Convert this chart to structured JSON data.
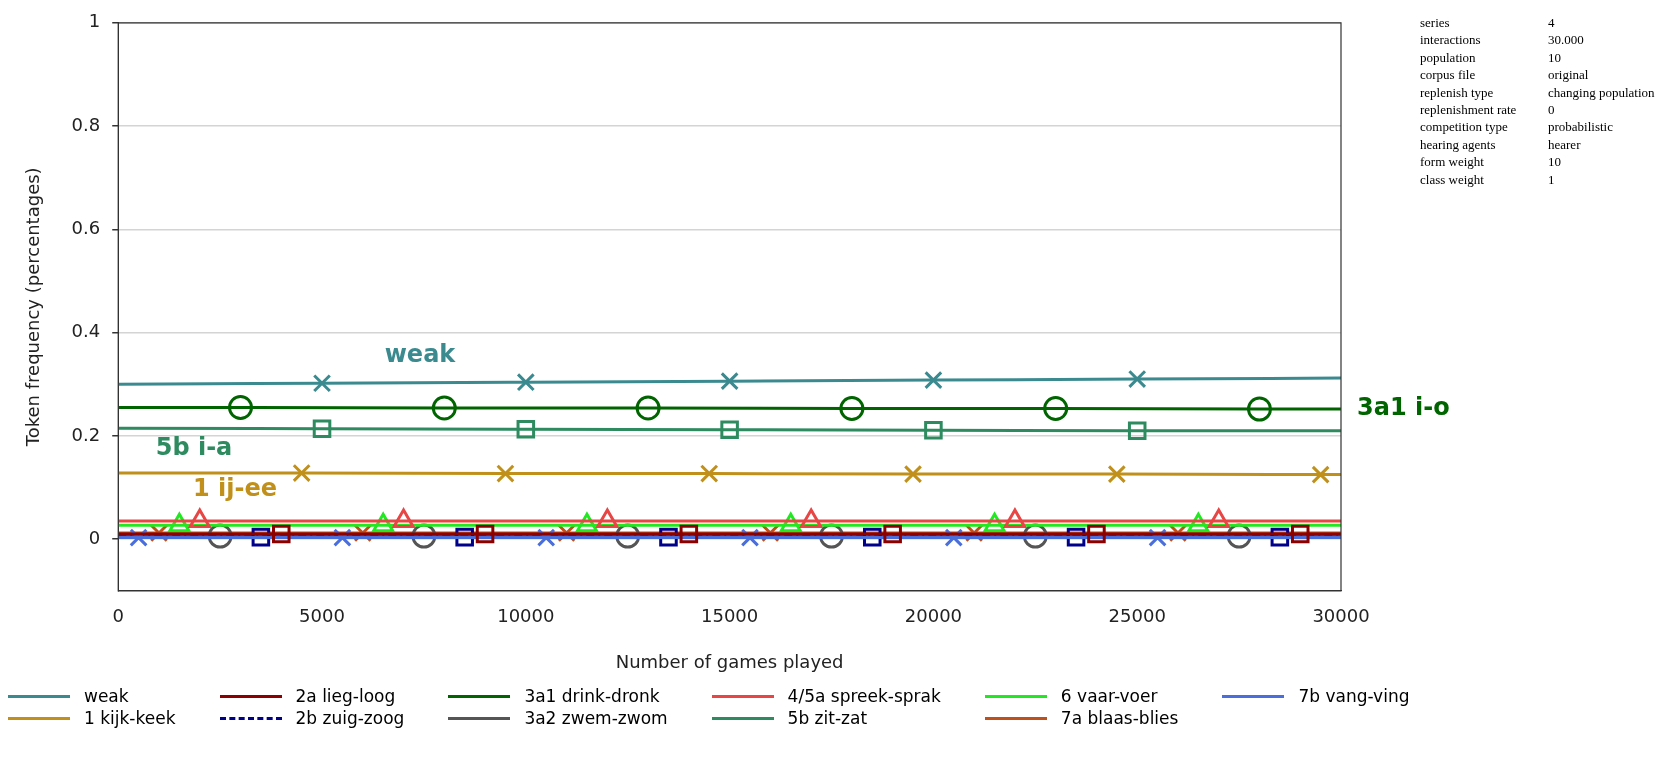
{
  "chart_data": {
    "type": "line",
    "xlabel": "Number of games played",
    "ylabel": "Token frequency (percentages)",
    "xlim": [
      0,
      30000
    ],
    "xticks": [
      0,
      5000,
      10000,
      15000,
      20000,
      25000,
      30000
    ],
    "ylim": [
      -0.1,
      1
    ],
    "yticks": [
      0,
      0.2,
      0.4,
      0.6,
      0.8,
      1
    ],
    "grid": "y",
    "legend": "bottom",
    "series": [
      {
        "name": "weak",
        "color": "#3a8a8f",
        "marker": "cross",
        "x": [
          0,
          5000,
          10000,
          15000,
          20000,
          25000,
          30000
        ],
        "values": [
          0.3,
          0.302,
          0.304,
          0.306,
          0.308,
          0.31,
          0.312
        ]
      },
      {
        "name": "2a lieg-loog",
        "color": "#8b0000",
        "marker": "square",
        "x": [
          0,
          4000,
          9000,
          14000,
          19000,
          24000,
          29000,
          30000
        ],
        "values": [
          0.01,
          0.01,
          0.01,
          0.01,
          0.01,
          0.01,
          0.01,
          0.01
        ]
      },
      {
        "name": "3a1 drink-dronk",
        "color": "#006400",
        "marker": "circle",
        "x": [
          0,
          3000,
          8000,
          13000,
          18000,
          23000,
          28000,
          30000
        ],
        "values": [
          0.255,
          0.255,
          0.254,
          0.254,
          0.253,
          0.253,
          0.252,
          0.252
        ]
      },
      {
        "name": "4/5a spreek-sprak",
        "color": "#e84545",
        "marker": "triangle",
        "x": [
          0,
          2000,
          7000,
          12000,
          17000,
          22000,
          27000,
          30000
        ],
        "values": [
          0.035,
          0.035,
          0.035,
          0.035,
          0.035,
          0.035,
          0.035,
          0.035
        ]
      },
      {
        "name": "6 vaar-voer",
        "color": "#22e822",
        "marker": "triangle",
        "x": [
          0,
          1500,
          6500,
          11500,
          16500,
          21500,
          26500,
          30000
        ],
        "values": [
          0.027,
          0.027,
          0.027,
          0.027,
          0.027,
          0.027,
          0.027,
          0.027
        ]
      },
      {
        "name": "7b vang-ving",
        "color": "#4a6fdc",
        "marker": "cross",
        "x": [
          0,
          500,
          5500,
          10500,
          15500,
          20500,
          25500,
          30000
        ],
        "values": [
          0.003,
          0.003,
          0.003,
          0.003,
          0.003,
          0.003,
          0.003,
          0.003
        ]
      },
      {
        "name": "1 kijk-keek",
        "color": "#c0901a",
        "marker": "cross",
        "x": [
          0,
          4500,
          9500,
          14500,
          19500,
          24500,
          29500,
          30000
        ],
        "values": [
          0.128,
          0.128,
          0.127,
          0.127,
          0.126,
          0.126,
          0.125,
          0.125
        ]
      },
      {
        "name": "2b zuig-zoog",
        "color": "#00008b",
        "marker": "square",
        "line_style": "dashed",
        "x": [
          0,
          3500,
          8500,
          13500,
          18500,
          23500,
          28500,
          30000
        ],
        "values": [
          0.004,
          0.004,
          0.004,
          0.004,
          0.004,
          0.004,
          0.004,
          0.004
        ]
      },
      {
        "name": "3a2 zwem-zwom",
        "color": "#555555",
        "marker": "circle",
        "x": [
          0,
          2500,
          7500,
          12500,
          17500,
          22500,
          27500,
          30000
        ],
        "values": [
          0.006,
          0.006,
          0.006,
          0.006,
          0.006,
          0.006,
          0.006,
          0.006
        ]
      },
      {
        "name": "5b zit-zat",
        "color": "#2e8b60",
        "marker": "square",
        "x": [
          0,
          5000,
          10000,
          15000,
          20000,
          25000,
          30000
        ],
        "values": [
          0.215,
          0.214,
          0.213,
          0.212,
          0.211,
          0.21,
          0.21
        ]
      },
      {
        "name": "7a blaas-blies",
        "color": "#c0501a",
        "marker": "cross",
        "x": [
          0,
          1000,
          6000,
          11000,
          16000,
          21000,
          26000,
          30000
        ],
        "values": [
          0.012,
          0.012,
          0.012,
          0.012,
          0.012,
          0.012,
          0.012,
          0.012
        ]
      }
    ],
    "annotations": [
      {
        "text": "3a1 i-o",
        "x": 30000,
        "y": 0.252
      },
      "weak",
      "5b i-a",
      "1 ij-ee",
      "series",
      "4",
      "interactions",
      "30.000",
      "population",
      "10",
      "corpus file",
      "original",
      "replenish type",
      "changing population",
      "replenishment rate",
      "0",
      "competition type",
      "probabilistic",
      "hearing agents",
      "hearer",
      "form weight",
      "10",
      "class weight",
      "1"
    ]
  }
}
